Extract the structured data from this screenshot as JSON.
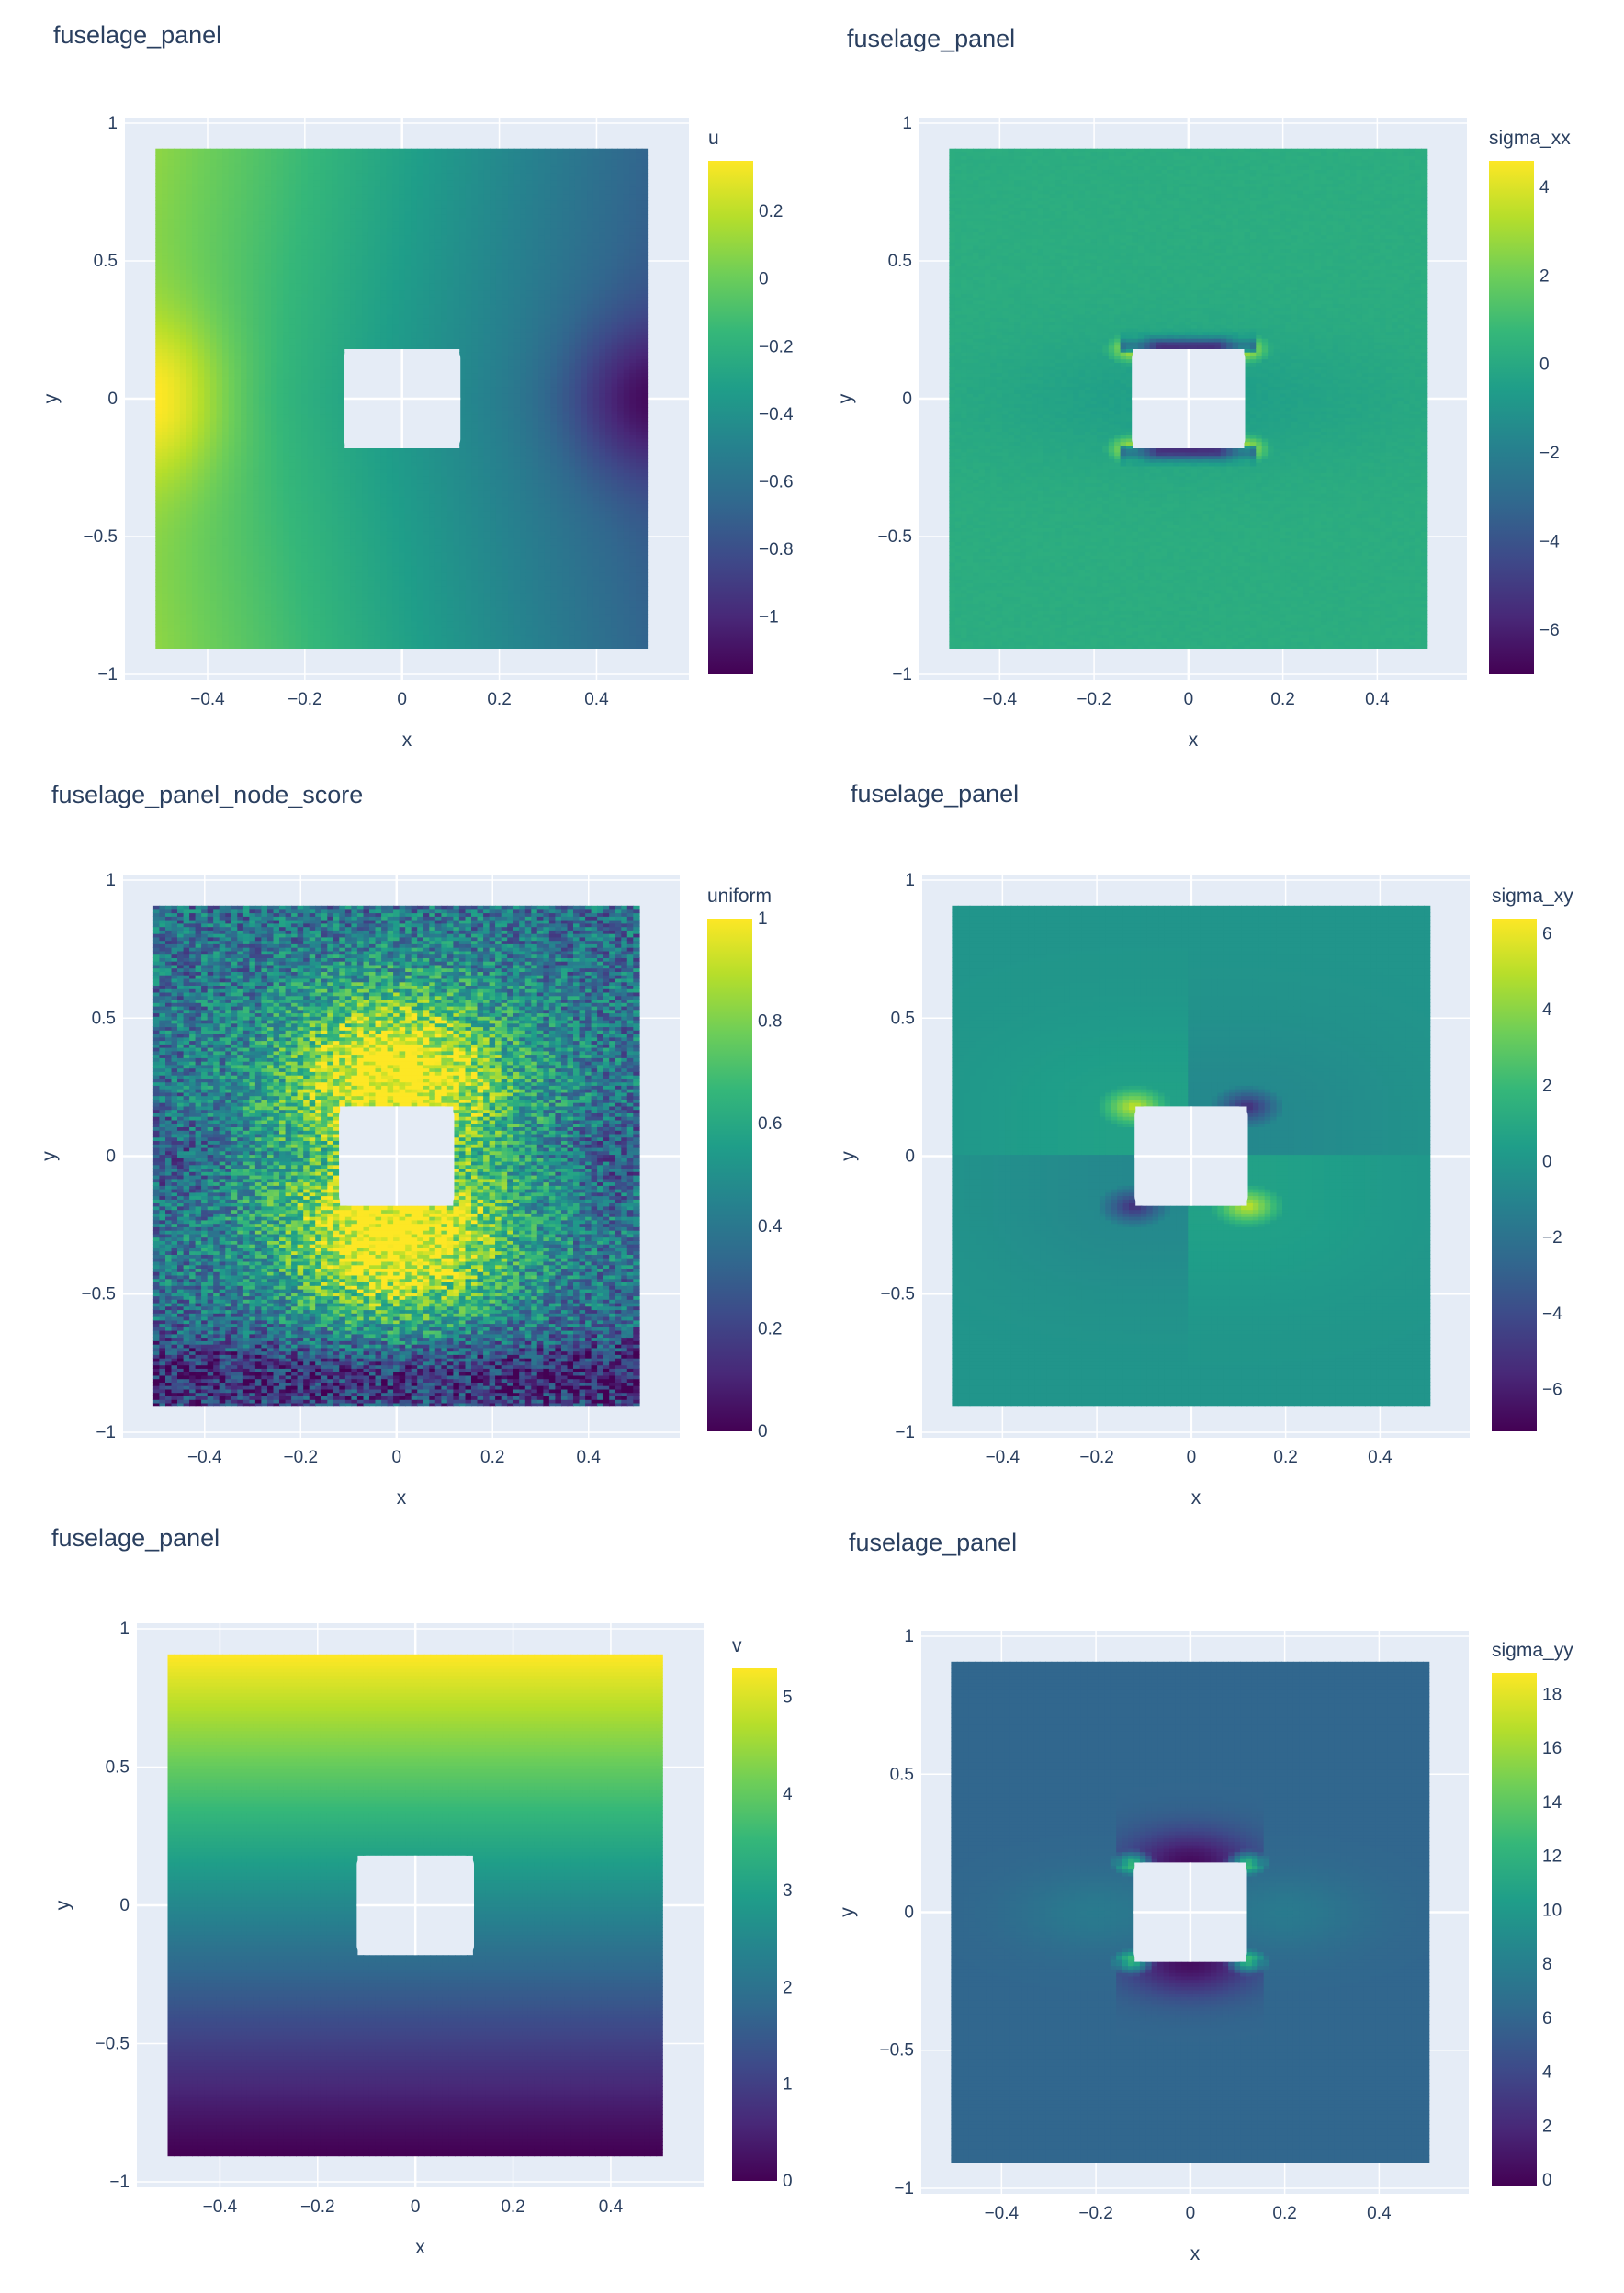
{
  "colorscale": "Viridis",
  "colors": {
    "plot_bg": "#e5ecf6",
    "grid": "#ffffff",
    "text": "#2a3f5f",
    "viridis": [
      "#440154",
      "#482878",
      "#3e4989",
      "#31688e",
      "#26828e",
      "#1f9e89",
      "#35b779",
      "#6ece58",
      "#b5de2b",
      "#fde725"
    ]
  },
  "chart_data": [
    {
      "type": "scatter",
      "title": "fuselage_panel",
      "xlabel": "x",
      "ylabel": "y",
      "xlim": [
        -0.57,
        0.59
      ],
      "ylim": [
        -1.02,
        1.02
      ],
      "x_ticks": [
        "−0.4",
        "−0.2",
        "0",
        "0.2",
        "0.4"
      ],
      "x_tick_values": [
        -0.4,
        -0.2,
        0,
        0.2,
        0.4
      ],
      "y_ticks": [
        "−1",
        "−0.5",
        "0",
        "0.5",
        "1"
      ],
      "y_tick_values": [
        -1,
        -0.5,
        0,
        0.5,
        1
      ],
      "domain": {
        "x": [
          -0.5,
          0.5
        ],
        "y": [
          -0.9,
          0.9
        ]
      },
      "hole": {
        "x": [
          -0.12,
          0.12
        ],
        "y": [
          -0.18,
          0.18
        ]
      },
      "colorbar": {
        "title": "u",
        "range": [
          -1.17,
          0.35
        ],
        "tick_labels": [
          "0.2",
          "0",
          "−0.2",
          "−0.4",
          "−0.6",
          "−0.8",
          "−1"
        ],
        "tick_values": [
          0.2,
          0,
          -0.2,
          -0.4,
          -0.6,
          -0.8,
          -1
        ]
      },
      "field": "u"
    },
    {
      "type": "scatter",
      "title": "fuselage_panel",
      "xlabel": "x",
      "ylabel": "y",
      "xlim": [
        -0.57,
        0.59
      ],
      "ylim": [
        -1.02,
        1.02
      ],
      "x_ticks": [
        "−0.4",
        "−0.2",
        "0",
        "0.2",
        "0.4"
      ],
      "x_tick_values": [
        -0.4,
        -0.2,
        0,
        0.2,
        0.4
      ],
      "y_ticks": [
        "−1",
        "−0.5",
        "0",
        "0.5",
        "1"
      ],
      "y_tick_values": [
        -1,
        -0.5,
        0,
        0.5,
        1
      ],
      "domain": {
        "x": [
          -0.5,
          0.5
        ],
        "y": [
          -0.9,
          0.9
        ]
      },
      "hole": {
        "x": [
          -0.12,
          0.12
        ],
        "y": [
          -0.18,
          0.18
        ]
      },
      "colorbar": {
        "title": "sigma_xx",
        "range": [
          -7,
          4.6
        ],
        "tick_labels": [
          "4",
          "2",
          "0",
          "−2",
          "−4",
          "−6"
        ],
        "tick_values": [
          4,
          2,
          0,
          -2,
          -4,
          -6
        ]
      },
      "field": "sigma_xx"
    },
    {
      "type": "scatter",
      "title": "fuselage_panel_node_score",
      "xlabel": "x",
      "ylabel": "y",
      "xlim": [
        -0.57,
        0.59
      ],
      "ylim": [
        -1.02,
        1.02
      ],
      "x_ticks": [
        "−0.4",
        "−0.2",
        "0",
        "0.2",
        "0.4"
      ],
      "x_tick_values": [
        -0.4,
        -0.2,
        0,
        0.2,
        0.4
      ],
      "y_ticks": [
        "−1",
        "−0.5",
        "0",
        "0.5",
        "1"
      ],
      "y_tick_values": [
        -1,
        -0.5,
        0,
        0.5,
        1
      ],
      "domain": {
        "x": [
          -0.5,
          0.5
        ],
        "y": [
          -0.9,
          0.9
        ]
      },
      "hole": {
        "x": [
          -0.12,
          0.12
        ],
        "y": [
          -0.18,
          0.18
        ]
      },
      "colorbar": {
        "title": "uniform",
        "range": [
          0,
          1
        ],
        "tick_labels": [
          "1",
          "0.8",
          "0.6",
          "0.4",
          "0.2",
          "0"
        ],
        "tick_values": [
          1,
          0.8,
          0.6,
          0.4,
          0.2,
          0
        ]
      },
      "field": "uniform"
    },
    {
      "type": "scatter",
      "title": "fuselage_panel",
      "xlabel": "x",
      "ylabel": "y",
      "xlim": [
        -0.57,
        0.59
      ],
      "ylim": [
        -1.02,
        1.02
      ],
      "x_ticks": [
        "−0.4",
        "−0.2",
        "0",
        "0.2",
        "0.4"
      ],
      "x_tick_values": [
        -0.4,
        -0.2,
        0,
        0.2,
        0.4
      ],
      "y_ticks": [
        "−1",
        "−0.5",
        "0",
        "0.5",
        "1"
      ],
      "y_tick_values": [
        -1,
        -0.5,
        0,
        0.5,
        1
      ],
      "domain": {
        "x": [
          -0.5,
          0.5
        ],
        "y": [
          -0.9,
          0.9
        ]
      },
      "hole": {
        "x": [
          -0.12,
          0.12
        ],
        "y": [
          -0.18,
          0.18
        ]
      },
      "colorbar": {
        "title": "sigma_xy",
        "range": [
          -7.1,
          6.4
        ],
        "tick_labels": [
          "6",
          "4",
          "2",
          "0",
          "−2",
          "−4",
          "−6"
        ],
        "tick_values": [
          6,
          4,
          2,
          0,
          -2,
          -4,
          -6
        ]
      },
      "field": "sigma_xy"
    },
    {
      "type": "scatter",
      "title": "fuselage_panel",
      "xlabel": "x",
      "ylabel": "y",
      "xlim": [
        -0.57,
        0.59
      ],
      "ylim": [
        -1.02,
        1.02
      ],
      "x_ticks": [
        "−0.4",
        "−0.2",
        "0",
        "0.2",
        "0.4"
      ],
      "x_tick_values": [
        -0.4,
        -0.2,
        0,
        0.2,
        0.4
      ],
      "y_ticks": [
        "−1",
        "−0.5",
        "0",
        "0.5",
        "1"
      ],
      "y_tick_values": [
        -1,
        -0.5,
        0,
        0.5,
        1
      ],
      "domain": {
        "x": [
          -0.5,
          0.5
        ],
        "y": [
          -0.9,
          0.9
        ]
      },
      "hole": {
        "x": [
          -0.12,
          0.12
        ],
        "y": [
          -0.18,
          0.18
        ]
      },
      "colorbar": {
        "title": "v",
        "range": [
          0,
          5.3
        ],
        "tick_labels": [
          "5",
          "4",
          "3",
          "2",
          "1",
          "0"
        ],
        "tick_values": [
          5,
          4,
          3,
          2,
          1,
          0
        ]
      },
      "field": "v"
    },
    {
      "type": "scatter",
      "title": "fuselage_panel",
      "xlabel": "x",
      "ylabel": "y",
      "xlim": [
        -0.57,
        0.59
      ],
      "ylim": [
        -1.02,
        1.02
      ],
      "x_ticks": [
        "−0.4",
        "−0.2",
        "0",
        "0.2",
        "0.4"
      ],
      "x_tick_values": [
        -0.4,
        -0.2,
        0,
        0.2,
        0.4
      ],
      "y_ticks": [
        "−1",
        "−0.5",
        "0",
        "0.5",
        "1"
      ],
      "y_tick_values": [
        -1,
        -0.5,
        0,
        0.5,
        1
      ],
      "domain": {
        "x": [
          -0.5,
          0.5
        ],
        "y": [
          -0.9,
          0.9
        ]
      },
      "hole": {
        "x": [
          -0.12,
          0.12
        ],
        "y": [
          -0.18,
          0.18
        ]
      },
      "colorbar": {
        "title": "sigma_yy",
        "range": [
          -0.2,
          18.8
        ],
        "tick_labels": [
          "18",
          "16",
          "14",
          "12",
          "10",
          "8",
          "6",
          "4",
          "2",
          "0"
        ],
        "tick_values": [
          18,
          16,
          14,
          12,
          10,
          8,
          6,
          4,
          2,
          0
        ]
      },
      "field": "sigma_yy"
    }
  ]
}
